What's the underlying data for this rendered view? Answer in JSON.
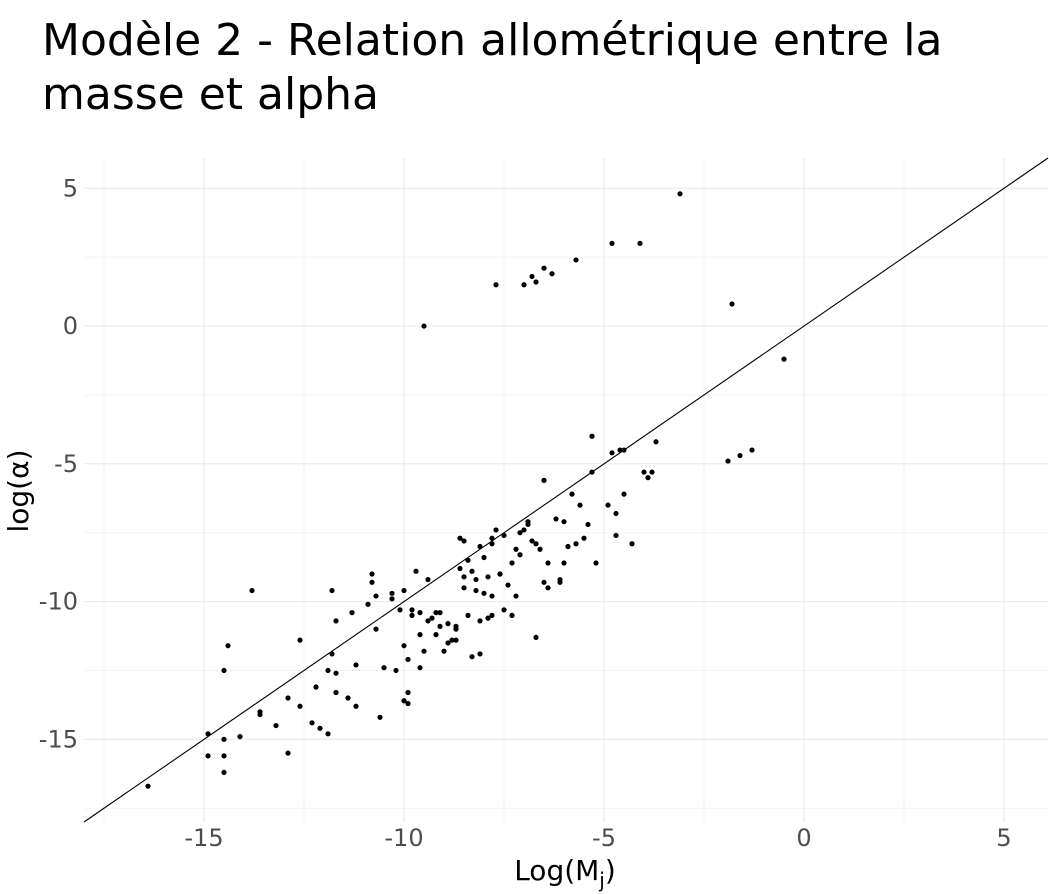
{
  "chart_data": {
    "type": "scatter",
    "title": "Modèle 2 - Relation allométrique entre la masse et alpha",
    "xlabel": "Log(M",
    "xlabel_sub": "j",
    "xlabel_end": ")",
    "ylabel": "log(α)",
    "xlim": [
      -18,
      6.1
    ],
    "ylim": [
      -18,
      6.1
    ],
    "xticks": [
      -15,
      -10,
      -5,
      0,
      5
    ],
    "yticks": [
      5,
      0,
      -5,
      -10,
      -15
    ],
    "tick_labels_x": [
      "-15",
      "-10",
      "-5",
      "0",
      "5"
    ],
    "tick_labels_y": [
      "5",
      "0",
      "-5",
      "-10",
      "-15"
    ],
    "grid": true,
    "reference_line": {
      "slope": 1,
      "intercept": 0
    },
    "points": [
      [
        -16.4,
        -16.7
      ],
      [
        -14.9,
        -14.8
      ],
      [
        -14.9,
        -15.6
      ],
      [
        -14.5,
        -15.0
      ],
      [
        -14.5,
        -15.6
      ],
      [
        -14.5,
        -16.2
      ],
      [
        -14.5,
        -12.5
      ],
      [
        -14.4,
        -11.6
      ],
      [
        -14.1,
        -14.9
      ],
      [
        -13.8,
        -9.6
      ],
      [
        -13.6,
        -14.0
      ],
      [
        -13.6,
        -14.1
      ],
      [
        -13.2,
        -14.5
      ],
      [
        -12.9,
        -13.5
      ],
      [
        -12.9,
        -15.5
      ],
      [
        -12.6,
        -11.4
      ],
      [
        -12.6,
        -13.8
      ],
      [
        -12.3,
        -14.4
      ],
      [
        -12.2,
        -13.1
      ],
      [
        -12.1,
        -14.6
      ],
      [
        -11.9,
        -14.8
      ],
      [
        -11.9,
        -12.5
      ],
      [
        -11.8,
        -11.9
      ],
      [
        -11.8,
        -9.6
      ],
      [
        -11.7,
        -10.7
      ],
      [
        -11.7,
        -12.6
      ],
      [
        -11.7,
        -13.3
      ],
      [
        -11.4,
        -13.5
      ],
      [
        -11.3,
        -10.4
      ],
      [
        -11.2,
        -12.3
      ],
      [
        -11.2,
        -13.8
      ],
      [
        -10.9,
        -10.1
      ],
      [
        -10.8,
        -9.0
      ],
      [
        -10.8,
        -9.3
      ],
      [
        -10.7,
        -11.0
      ],
      [
        -10.7,
        -9.8
      ],
      [
        -10.6,
        -14.2
      ],
      [
        -10.5,
        -12.4
      ],
      [
        -10.3,
        -9.9
      ],
      [
        -10.3,
        -9.7
      ],
      [
        -10.2,
        -12.5
      ],
      [
        -10.1,
        -10.3
      ],
      [
        -10.0,
        -9.6
      ],
      [
        -10.0,
        -11.6
      ],
      [
        -10.0,
        -13.6
      ],
      [
        -9.9,
        -12.1
      ],
      [
        -9.9,
        -13.7
      ],
      [
        -9.9,
        -13.3
      ],
      [
        -9.8,
        -10.5
      ],
      [
        -9.8,
        -10.3
      ],
      [
        -9.7,
        -8.9
      ],
      [
        -9.6,
        -10.4
      ],
      [
        -9.6,
        -12.4
      ],
      [
        -9.6,
        -11.2
      ],
      [
        -9.5,
        -11.8
      ],
      [
        -9.4,
        -10.7
      ],
      [
        -9.4,
        -9.2
      ],
      [
        -9.3,
        -10.6
      ],
      [
        -9.2,
        -10.4
      ],
      [
        -9.2,
        -11.2
      ],
      [
        -9.1,
        -10.9
      ],
      [
        -9.1,
        -10.4
      ],
      [
        -9.0,
        -11.8
      ],
      [
        -8.9,
        -10.8
      ],
      [
        -8.9,
        -11.5
      ],
      [
        -8.8,
        -11.4
      ],
      [
        -8.7,
        -11.0
      ],
      [
        -8.7,
        -11.4
      ],
      [
        -8.7,
        -10.9
      ],
      [
        -8.6,
        -8.8
      ],
      [
        -8.6,
        -7.7
      ],
      [
        -8.5,
        -7.8
      ],
      [
        -8.5,
        -9.5
      ],
      [
        -8.5,
        -9.1
      ],
      [
        -8.4,
        -10.5
      ],
      [
        -8.4,
        -8.5
      ],
      [
        -8.3,
        -12.0
      ],
      [
        -8.3,
        -8.9
      ],
      [
        -8.2,
        -9.6
      ],
      [
        -8.2,
        -9.2
      ],
      [
        -8.1,
        -11.9
      ],
      [
        -8.1,
        -10.7
      ],
      [
        -8.1,
        -8.0
      ],
      [
        -8.0,
        -9.7
      ],
      [
        -8.0,
        -8.4
      ],
      [
        -7.9,
        -9.1
      ],
      [
        -7.9,
        -10.6
      ],
      [
        -7.8,
        -10.5
      ],
      [
        -7.8,
        -9.8
      ],
      [
        -7.8,
        -7.9
      ],
      [
        -7.8,
        -7.7
      ],
      [
        -7.7,
        -7.4
      ],
      [
        -7.6,
        -9.0
      ],
      [
        -7.6,
        -9.0
      ],
      [
        -7.5,
        -10.3
      ],
      [
        -7.5,
        -7.6
      ],
      [
        -7.4,
        -9.4
      ],
      [
        -7.3,
        -8.6
      ],
      [
        -7.3,
        -10.5
      ],
      [
        -7.2,
        -8.1
      ],
      [
        -7.2,
        -9.8
      ],
      [
        -7.1,
        -8.3
      ],
      [
        -7.1,
        -7.5
      ],
      [
        -7.0,
        -7.4
      ],
      [
        -6.9,
        -7.2
      ],
      [
        -6.9,
        -7.1
      ],
      [
        -6.8,
        -7.8
      ],
      [
        -6.7,
        -11.3
      ],
      [
        -6.7,
        -7.9
      ],
      [
        -6.6,
        -8.1
      ],
      [
        -6.5,
        -5.6
      ],
      [
        -6.5,
        -9.3
      ],
      [
        -6.4,
        -8.6
      ],
      [
        -6.4,
        -9.5
      ],
      [
        -6.2,
        -7.0
      ],
      [
        -6.1,
        -9.2
      ],
      [
        -6.1,
        -9.3
      ],
      [
        -6.0,
        -8.6
      ],
      [
        -6.0,
        -7.1
      ],
      [
        -5.9,
        -8.0
      ],
      [
        -5.8,
        -6.1
      ],
      [
        -5.7,
        -7.9
      ],
      [
        -5.6,
        -6.5
      ],
      [
        -5.5,
        -7.7
      ],
      [
        -5.4,
        -7.2
      ],
      [
        -5.3,
        -5.3
      ],
      [
        -5.3,
        -4.0
      ],
      [
        -5.2,
        -8.6
      ],
      [
        -4.9,
        -6.5
      ],
      [
        -4.8,
        -4.6
      ],
      [
        -4.7,
        -6.8
      ],
      [
        -4.7,
        -7.6
      ],
      [
        -4.6,
        -4.5
      ],
      [
        -4.5,
        -4.5
      ],
      [
        -4.5,
        -6.1
      ],
      [
        -4.3,
        -7.9
      ],
      [
        -4.0,
        -5.3
      ],
      [
        -3.9,
        -5.5
      ],
      [
        -3.8,
        -5.3
      ],
      [
        -3.7,
        -4.2
      ],
      [
        -1.9,
        -4.9
      ],
      [
        -1.6,
        -4.7
      ],
      [
        -1.3,
        -4.5
      ],
      [
        -0.5,
        -1.2
      ],
      [
        -9.5,
        0.0
      ],
      [
        -7.7,
        1.5
      ],
      [
        -7.0,
        1.5
      ],
      [
        -6.8,
        1.8
      ],
      [
        -6.7,
        1.6
      ],
      [
        -6.5,
        2.1
      ],
      [
        -6.3,
        1.9
      ],
      [
        -5.7,
        2.4
      ],
      [
        -4.8,
        3.0
      ],
      [
        -4.1,
        3.0
      ],
      [
        -3.1,
        4.8
      ],
      [
        -1.8,
        0.8
      ]
    ]
  }
}
